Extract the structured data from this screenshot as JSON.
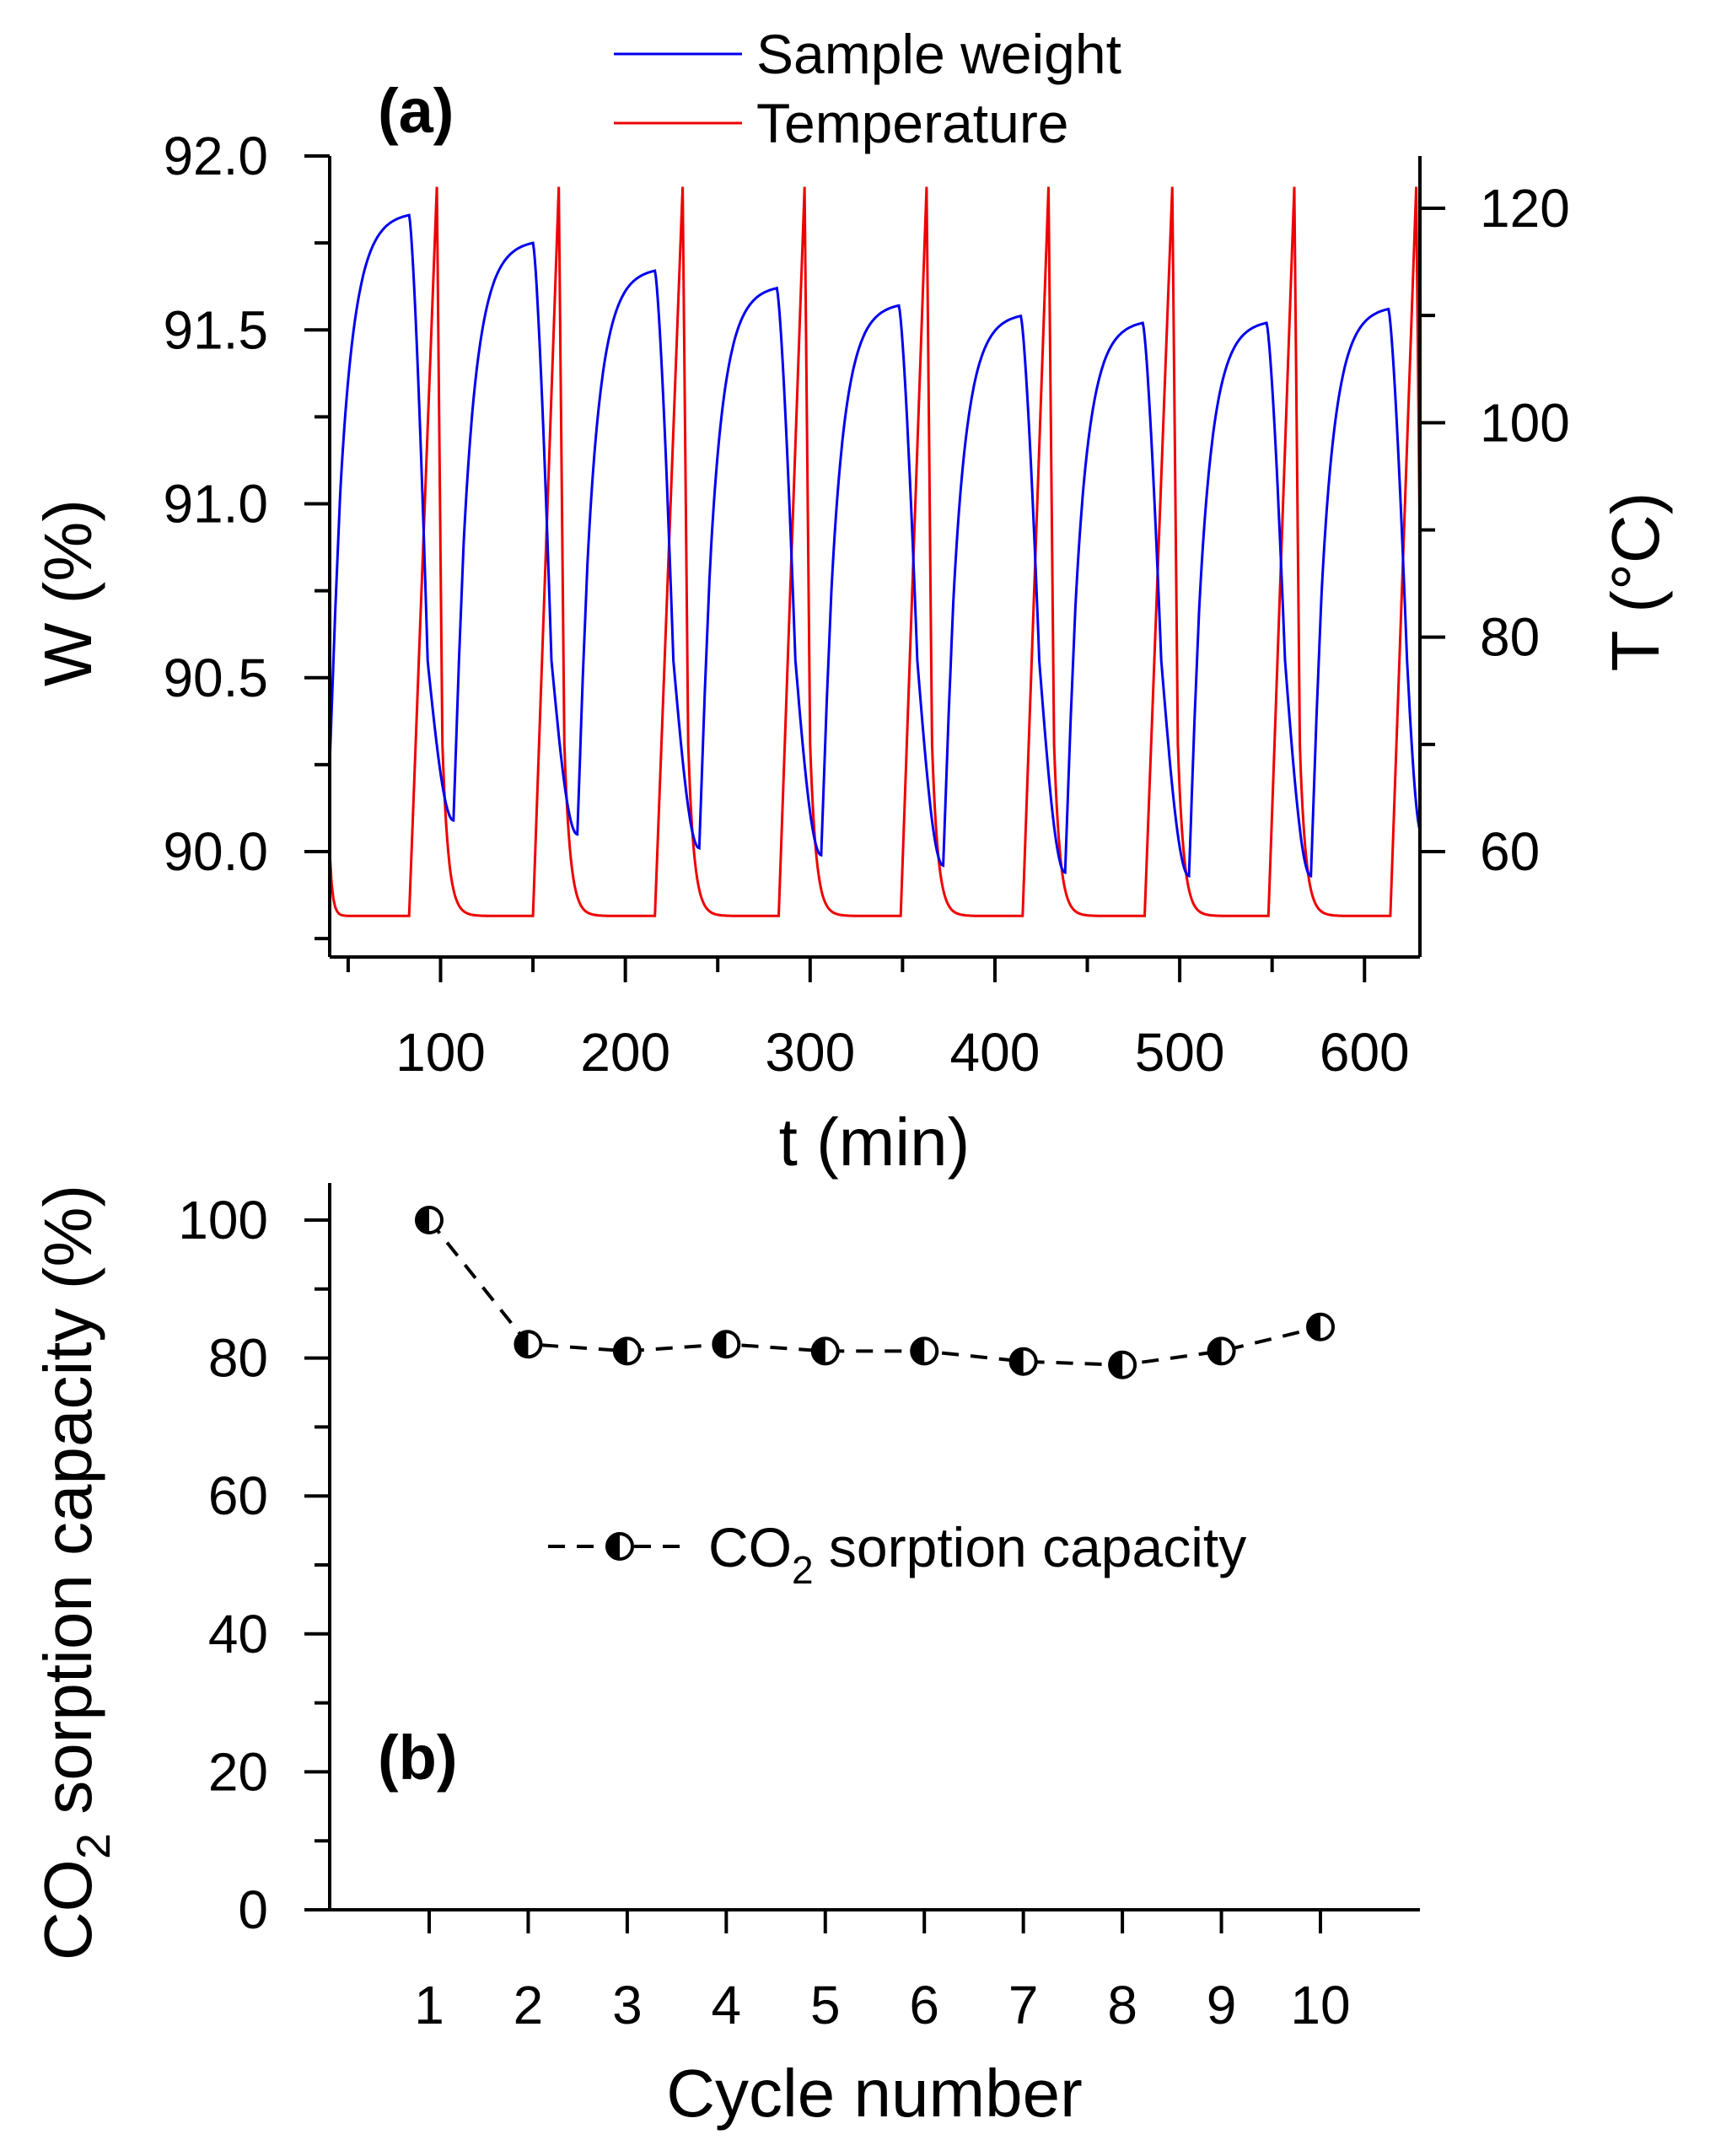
{
  "chart_data": [
    {
      "type": "line",
      "panel_label": "(a)",
      "xlabel": "t (min)",
      "ylabel_left": "W (%)",
      "ylabel_right": "T (°C)",
      "xlim": [
        40,
        630
      ],
      "ylim_left": [
        89.75,
        92.0
      ],
      "ylim_right": [
        51,
        125
      ],
      "x_ticks": [
        100,
        200,
        300,
        400,
        500,
        600
      ],
      "x_tick_labels": [
        "100",
        "200",
        "300",
        "400",
        "500",
        "600"
      ],
      "y_left_ticks": [
        90.0,
        90.5,
        91.0,
        91.5,
        92.0
      ],
      "y_left_tick_labels": [
        "90.0",
        "90.5",
        "91.0",
        "91.5",
        "92.0"
      ],
      "y_right_ticks": [
        60,
        80,
        100,
        120
      ],
      "y_right_tick_labels": [
        "60",
        "80",
        "100",
        "120"
      ],
      "legend_position": "top",
      "series": [
        {
          "name": "Sample weight",
          "axis": "left",
          "color": "#0000ee",
          "cycle_starts": [
            40,
            107,
            174,
            240,
            306,
            372,
            438,
            505,
            571
          ],
          "cycle_peak_times": [
            83,
            150,
            216,
            282,
            348,
            414,
            480,
            547,
            613
          ],
          "cycle_peak_values": [
            91.83,
            91.75,
            91.67,
            91.62,
            91.57,
            91.54,
            91.52,
            91.52,
            91.56
          ],
          "cycle_min_values": [
            90.25,
            90.09,
            90.05,
            90.01,
            89.99,
            89.96,
            89.94,
            89.93,
            89.93,
            90.05
          ]
        },
        {
          "name": "Temperature",
          "axis": "right",
          "color": "#ee0000",
          "baseline": 54,
          "peak_value": 122,
          "start_value": 60,
          "ramp_start_times": [
            83,
            150,
            216,
            283,
            349,
            415,
            481,
            548,
            614
          ],
          "peak_times": [
            98,
            164,
            231,
            297,
            363,
            429,
            496,
            562,
            628
          ]
        }
      ]
    },
    {
      "type": "line",
      "panel_label": "(b)",
      "xlabel": "Cycle number",
      "ylabel_main": "CO",
      "ylabel_sub": "2",
      "ylabel_rest": " sorption capacity (%)",
      "xlim": [
        0,
        10.95
      ],
      "ylim": [
        0,
        105
      ],
      "x_ticks": [
        1,
        2,
        3,
        4,
        5,
        6,
        7,
        8,
        9,
        10
      ],
      "x_tick_labels": [
        "1",
        "2",
        "3",
        "4",
        "5",
        "6",
        "7",
        "8",
        "9",
        "10"
      ],
      "y_ticks": [
        0,
        20,
        40,
        60,
        80,
        100
      ],
      "y_tick_labels": [
        "0",
        "20",
        "40",
        "60",
        "80",
        "100"
      ],
      "legend_position": "middle",
      "series": [
        {
          "name_main": "CO",
          "name_sub": "2",
          "name_rest": " sorption capacity",
          "x": [
            1,
            2,
            3,
            4,
            5,
            6,
            7,
            8,
            9,
            10
          ],
          "values": [
            100,
            82,
            81,
            82,
            81,
            81,
            79.5,
            79,
            81,
            84.5
          ]
        }
      ]
    }
  ]
}
